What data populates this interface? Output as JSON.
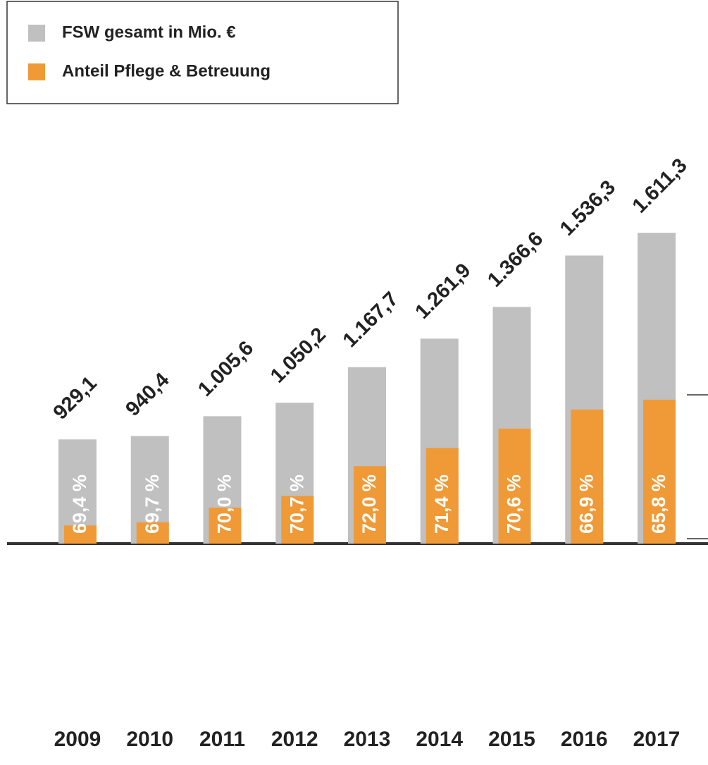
{
  "chart_data": {
    "type": "overlay-bar",
    "categories": [
      "2009",
      "2010",
      "2011",
      "2012",
      "2013",
      "2014",
      "2015",
      "2016",
      "2017"
    ],
    "series": [
      {
        "name": "FSW gesamt in Mio. €",
        "color": "#c0c0c0",
        "values": [
          929.1,
          940.4,
          1005.6,
          1050.2,
          1167.7,
          1261.9,
          1366.6,
          1536.3,
          1611.3
        ],
        "value_labels": [
          "929,1",
          "940,4",
          "1.005,6",
          "1.050,2",
          "1.167,7",
          "1.261,9",
          "1.366,6",
          "1.536,3",
          "1.611,3"
        ]
      },
      {
        "name": "Anteil Pflege & Betreuung",
        "color": "#f09a37",
        "values": [
          69.4,
          69.7,
          70.0,
          70.7,
          72.0,
          71.4,
          70.6,
          66.9,
          65.8
        ],
        "value_labels": [
          "69,4 %",
          "69,7 %",
          "70,0 %",
          "70,7 %",
          "72,0 %",
          "71,4 %",
          "70,6 %",
          "66,9 %",
          "65,8 %"
        ]
      }
    ],
    "ylim": [
      585,
      1650
    ]
  }
}
